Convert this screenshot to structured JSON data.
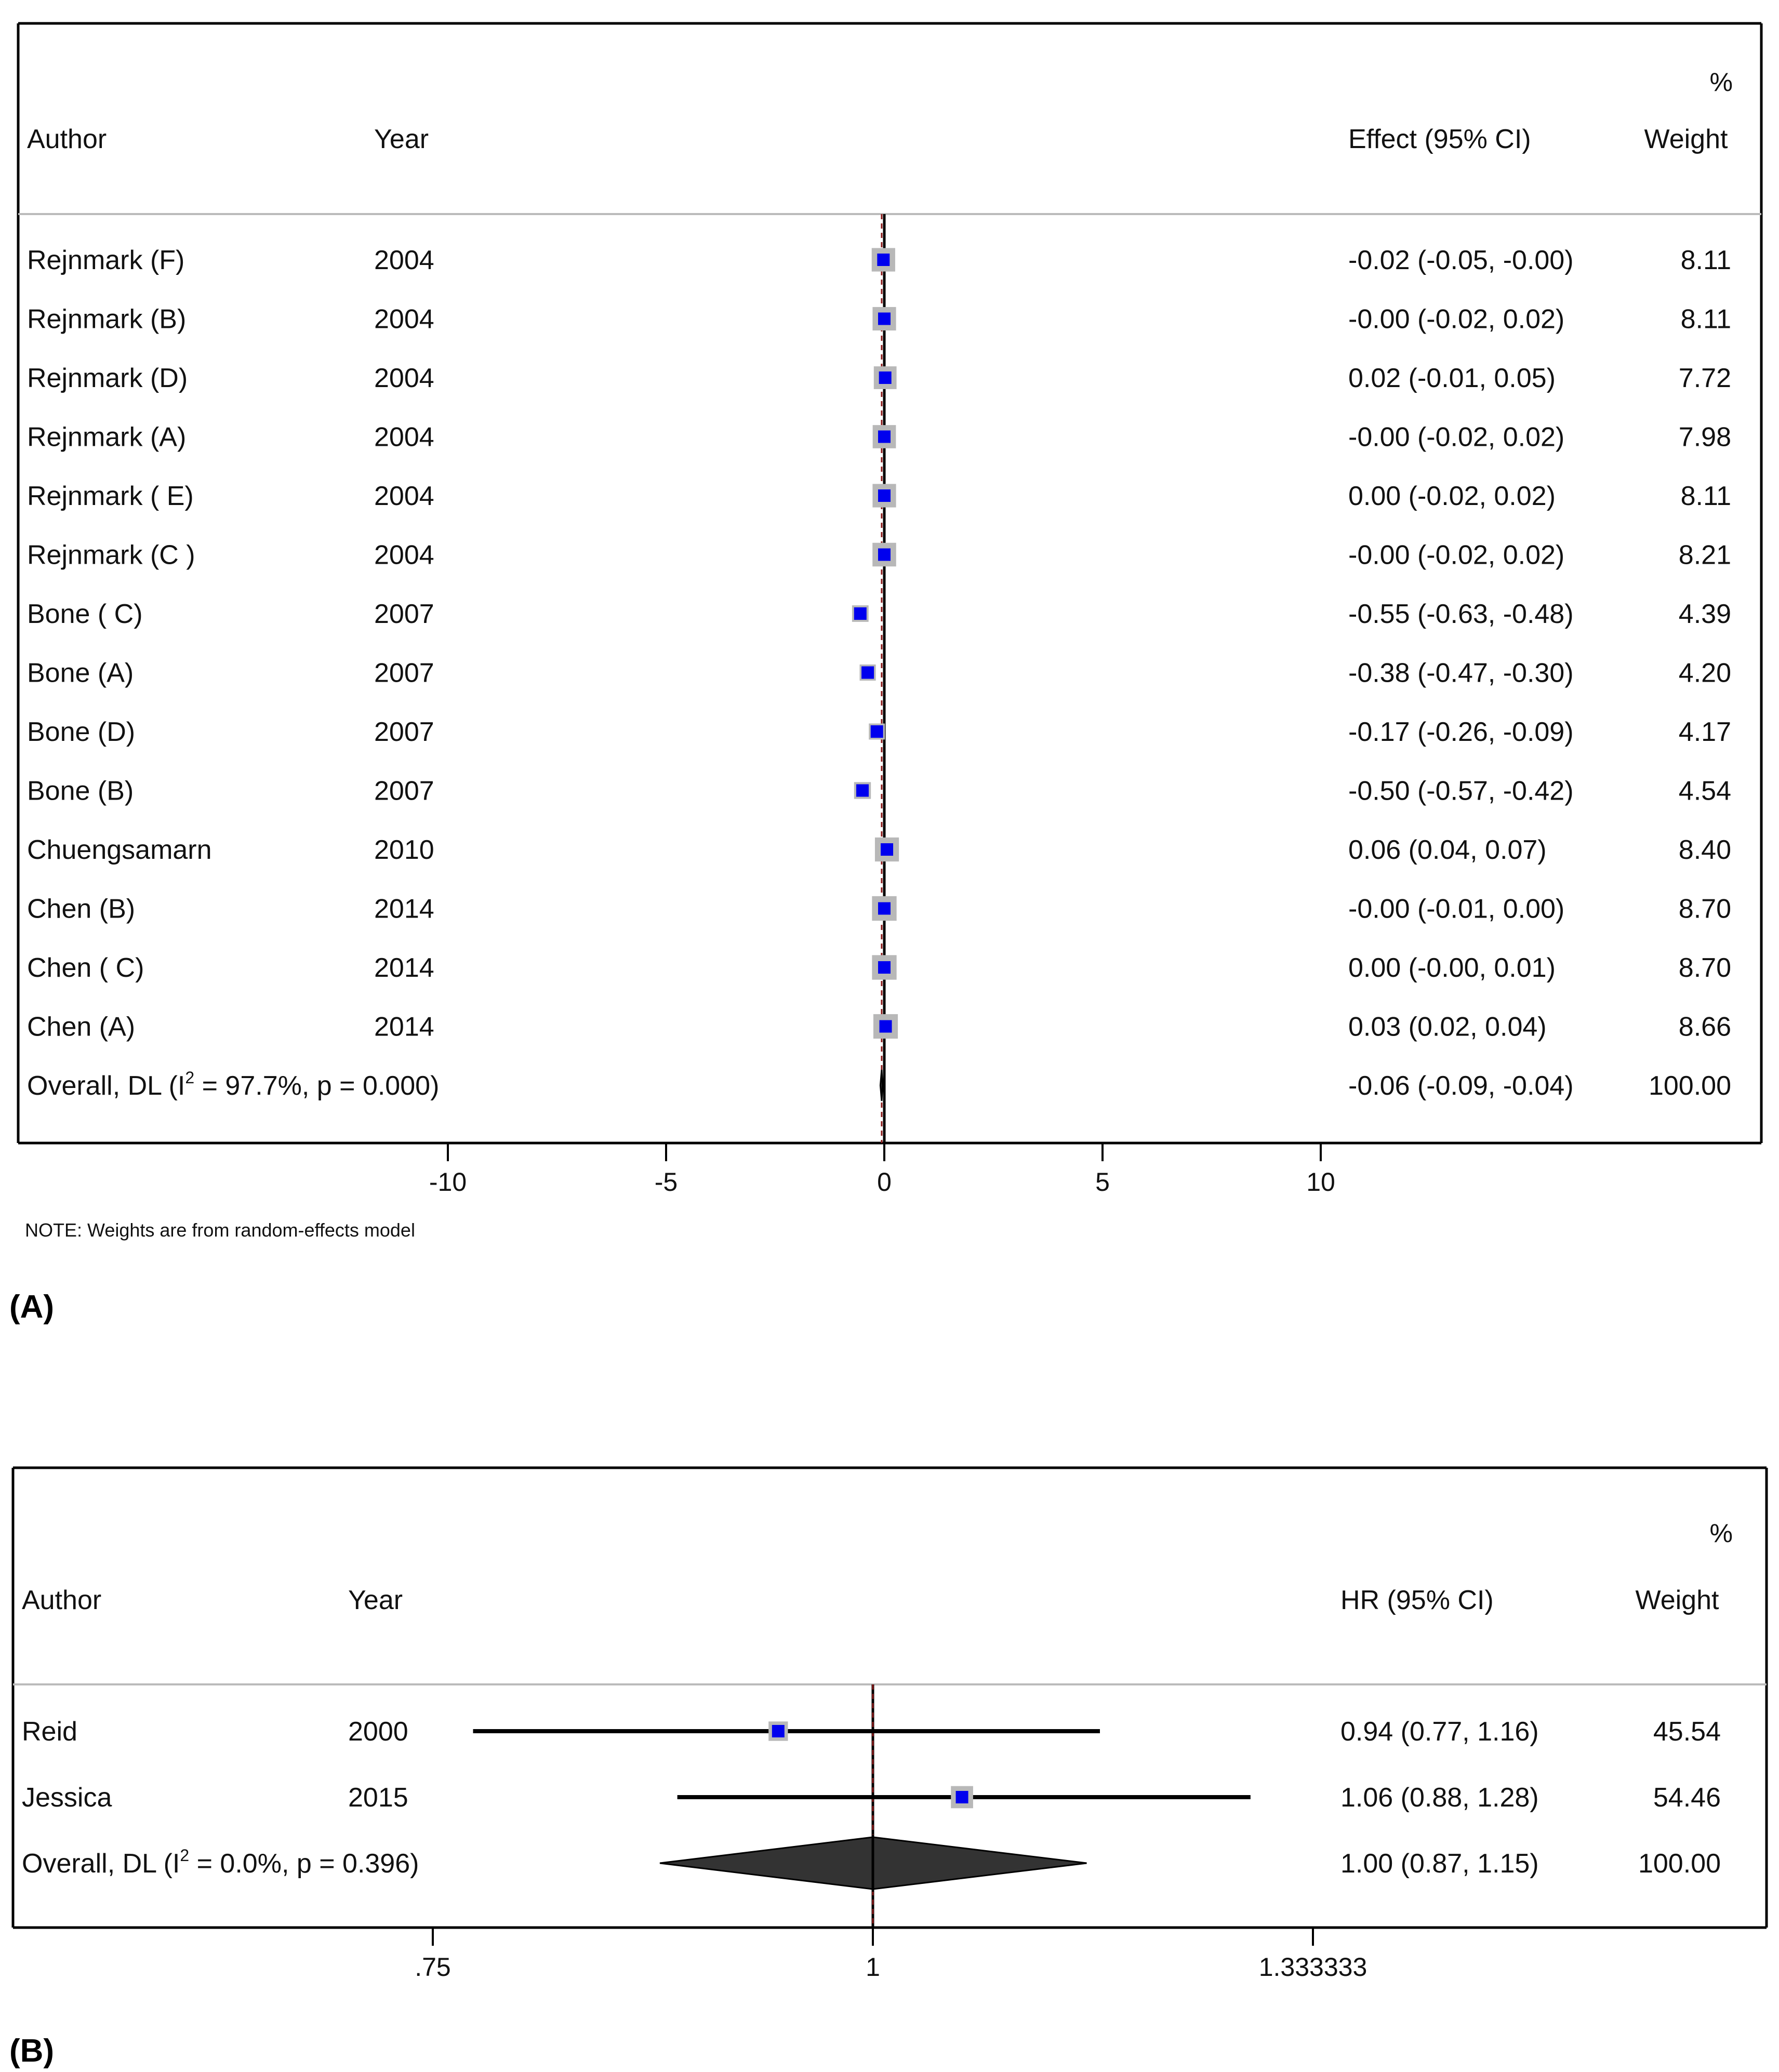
{
  "chart_data": [
    {
      "type": "forest",
      "panel_label": "(A)",
      "header": {
        "percent_symbol": "%",
        "author": "Author",
        "year": "Year",
        "effect": "Effect (95% CI)",
        "weight": "Weight"
      },
      "rows": [
        {
          "author": "Rejnmark (F)",
          "year": "2004",
          "effect": -0.02,
          "lower": -0.05,
          "upper": -0.0,
          "ci_text": "-0.02 (-0.05, -0.00)",
          "weight": "8.11"
        },
        {
          "author": "Rejnmark (B)",
          "year": "2004",
          "effect": -0.0,
          "lower": -0.02,
          "upper": 0.02,
          "ci_text": "-0.00 (-0.02, 0.02)",
          "weight": "8.11"
        },
        {
          "author": "Rejnmark (D)",
          "year": "2004",
          "effect": 0.02,
          "lower": -0.01,
          "upper": 0.05,
          "ci_text": "0.02 (-0.01, 0.05)",
          "weight": "7.72"
        },
        {
          "author": "Rejnmark (A)",
          "year": "2004",
          "effect": -0.0,
          "lower": -0.02,
          "upper": 0.02,
          "ci_text": "-0.00 (-0.02, 0.02)",
          "weight": "7.98"
        },
        {
          "author": "Rejnmark ( E)",
          "year": "2004",
          "effect": 0.0,
          "lower": -0.02,
          "upper": 0.02,
          "ci_text": "0.00 (-0.02, 0.02)",
          "weight": "8.11"
        },
        {
          "author": "Rejnmark (C )",
          "year": "2004",
          "effect": -0.0,
          "lower": -0.02,
          "upper": 0.02,
          "ci_text": "-0.00 (-0.02, 0.02)",
          "weight": "8.21"
        },
        {
          "author": "Bone ( C)",
          "year": "2007",
          "effect": -0.55,
          "lower": -0.63,
          "upper": -0.48,
          "ci_text": "-0.55 (-0.63, -0.48)",
          "weight": "4.39"
        },
        {
          "author": "Bone (A)",
          "year": "2007",
          "effect": -0.38,
          "lower": -0.47,
          "upper": -0.3,
          "ci_text": "-0.38 (-0.47, -0.30)",
          "weight": "4.20"
        },
        {
          "author": "Bone (D)",
          "year": "2007",
          "effect": -0.17,
          "lower": -0.26,
          "upper": -0.09,
          "ci_text": "-0.17 (-0.26, -0.09)",
          "weight": "4.17"
        },
        {
          "author": "Bone (B)",
          "year": "2007",
          "effect": -0.5,
          "lower": -0.57,
          "upper": -0.42,
          "ci_text": "-0.50 (-0.57, -0.42)",
          "weight": "4.54"
        },
        {
          "author": "Chuengsamarn",
          "year": "2010",
          "effect": 0.06,
          "lower": 0.04,
          "upper": 0.07,
          "ci_text": "0.06 (0.04, 0.07)",
          "weight": "8.40"
        },
        {
          "author": "Chen (B)",
          "year": "2014",
          "effect": -0.0,
          "lower": -0.01,
          "upper": 0.0,
          "ci_text": "-0.00 (-0.01, 0.00)",
          "weight": "8.70"
        },
        {
          "author": "Chen ( C)",
          "year": "2014",
          "effect": 0.0,
          "lower": -0.0,
          "upper": 0.01,
          "ci_text": "0.00 (-0.00, 0.01)",
          "weight": "8.70"
        },
        {
          "author": "Chen (A)",
          "year": "2014",
          "effect": 0.03,
          "lower": 0.02,
          "upper": 0.04,
          "ci_text": "0.03 (0.02, 0.04)",
          "weight": "8.66"
        }
      ],
      "overall": {
        "label_prefix": "Overall, DL (I",
        "label_sup": "2",
        "label_suffix": " = 97.7%, p = 0.000)",
        "effect": -0.06,
        "lower": -0.09,
        "upper": -0.04,
        "ci_text": "-0.06 (-0.09, -0.04)",
        "weight": "100.00"
      },
      "x_axis": {
        "ticks": [
          {
            "value": -10,
            "label": "-10"
          },
          {
            "value": -5,
            "label": "-5"
          },
          {
            "value": 0,
            "label": "0"
          },
          {
            "value": 5,
            "label": "5"
          },
          {
            "value": 10,
            "label": "10"
          }
        ],
        "range": [
          -10,
          10
        ],
        "null_value": 0
      },
      "note": "NOTE: Weights are from random-effects model"
    },
    {
      "type": "forest",
      "panel_label": "(B)",
      "header": {
        "percent_symbol": "%",
        "author": "Author",
        "year": "Year",
        "effect": "HR (95% CI)",
        "weight": "Weight"
      },
      "rows": [
        {
          "author": "Reid",
          "year": "2000",
          "effect": 0.94,
          "lower": 0.77,
          "upper": 1.16,
          "ci_text": "0.94 (0.77, 1.16)",
          "weight": "45.54"
        },
        {
          "author": "Jessica",
          "year": "2015",
          "effect": 1.06,
          "lower": 0.88,
          "upper": 1.28,
          "ci_text": "1.06 (0.88, 1.28)",
          "weight": "54.46"
        }
      ],
      "overall": {
        "label_prefix": "Overall, DL (I",
        "label_sup": "2",
        "label_suffix": " = 0.0%, p = 0.396)",
        "effect": 1.0,
        "lower": 0.87,
        "upper": 1.15,
        "ci_text": "1.00 (0.87, 1.15)",
        "weight": "100.00"
      },
      "x_axis": {
        "scale": "log",
        "ticks": [
          {
            "value": 0.75,
            "label": ".75"
          },
          {
            "value": 1,
            "label": "1"
          },
          {
            "value": 1.333333,
            "label": "1.333333"
          }
        ],
        "range": [
          0.75,
          1.333333
        ],
        "null_value": 1
      }
    }
  ],
  "colors": {
    "marker": "#0000ee",
    "marker_box": "#b8b8b8",
    "frame": "#000000",
    "divider": "#bbbbbb",
    "ref_dash": "#8b1a1a",
    "diamond": "#333333"
  }
}
